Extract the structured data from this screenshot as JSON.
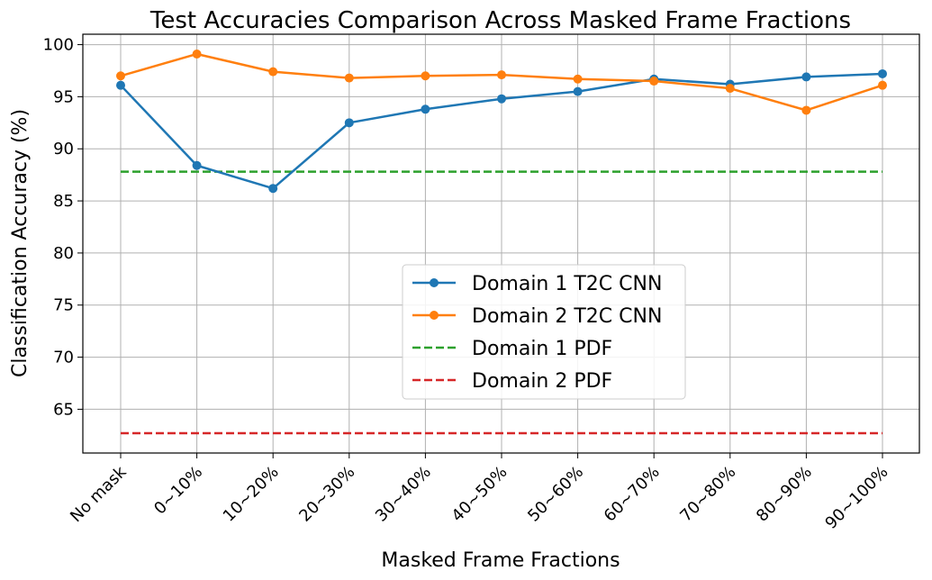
{
  "chart_data": {
    "type": "line",
    "title": "Test Accuracies Comparison Across Masked Frame Fractions",
    "xlabel": "Masked Frame Fractions",
    "ylabel": "Classification Accuracy (%)",
    "categories": [
      "No mask",
      "0~10%",
      "10~20%",
      "20~30%",
      "30~40%",
      "40~50%",
      "50~60%",
      "60~70%",
      "70~80%",
      "80~90%",
      "90~100%"
    ],
    "yticks": [
      65,
      70,
      75,
      80,
      85,
      90,
      95,
      100
    ],
    "ylim": [
      60.8,
      101.0
    ],
    "grid": true,
    "legend_position": "center-bottom",
    "series": [
      {
        "name": "Domain 1 T2C CNN",
        "style": "solid-marker",
        "color": "#1f77b4",
        "values": [
          96.1,
          88.4,
          86.2,
          92.5,
          93.8,
          94.8,
          95.5,
          96.7,
          96.2,
          96.9,
          97.2
        ]
      },
      {
        "name": "Domain 2 T2C CNN",
        "style": "solid-marker",
        "color": "#ff7f0e",
        "values": [
          97.0,
          99.1,
          97.4,
          96.8,
          97.0,
          97.1,
          96.7,
          96.5,
          95.8,
          93.7,
          96.1
        ]
      },
      {
        "name": "Domain 1 PDF",
        "style": "dashed",
        "color": "#2ca02c",
        "values": [
          87.8,
          87.8,
          87.8,
          87.8,
          87.8,
          87.8,
          87.8,
          87.8,
          87.8,
          87.8,
          87.8
        ]
      },
      {
        "name": "Domain 2 PDF",
        "style": "dashed",
        "color": "#d62728",
        "values": [
          62.7,
          62.7,
          62.7,
          62.7,
          62.7,
          62.7,
          62.7,
          62.7,
          62.7,
          62.7,
          62.7
        ]
      }
    ]
  }
}
